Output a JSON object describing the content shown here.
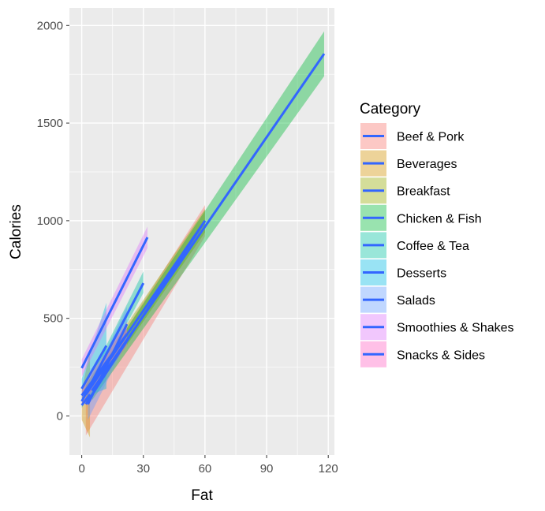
{
  "chart_data": {
    "type": "line",
    "subtype": "smoothed linear fit with confidence ribbons",
    "title": "",
    "xlabel": "Fat",
    "ylabel": "Calories",
    "xlim": [
      -6,
      123
    ],
    "ylim": [
      -200,
      2090
    ],
    "x_ticks": [
      0,
      30,
      60,
      90,
      120
    ],
    "y_ticks": [
      0,
      500,
      1000,
      1500,
      2000
    ],
    "grid": true,
    "legend": {
      "title": "Category",
      "position": "right"
    },
    "line_color": "#3366FF",
    "panel_background": "#EBEBEB",
    "series": [
      {
        "name": "Beef & Pork",
        "color": "#F8766D",
        "x": [
          2,
          60
        ],
        "y": [
          60,
          1000
        ],
        "ci": [
          [
            -100,
            120
          ],
          [
            920,
            1080
          ]
        ]
      },
      {
        "name": "Beverages",
        "color": "#D39200",
        "x": [
          0,
          4
        ],
        "y": [
          55,
          110
        ],
        "ci": [
          [
            -20,
            130
          ],
          [
            -110,
            330
          ]
        ]
      },
      {
        "name": "Breakfast",
        "color": "#93AA00",
        "x": [
          2,
          60
        ],
        "y": [
          110,
          1000
        ],
        "ci": [
          [
            60,
            160
          ],
          [
            940,
            1060
          ]
        ]
      },
      {
        "name": "Chicken & Fish",
        "color": "#00BA38",
        "x": [
          5,
          118
        ],
        "y": [
          130,
          1855
        ],
        "ci": [
          [
            80,
            180
          ],
          [
            1740,
            1970
          ]
        ]
      },
      {
        "name": "Coffee & Tea",
        "color": "#00C19F",
        "x": [
          0,
          30
        ],
        "y": [
          75,
          680
        ],
        "ci": [
          [
            40,
            110
          ],
          [
            630,
            740
          ]
        ]
      },
      {
        "name": "Desserts",
        "color": "#00B9E3",
        "x": [
          0,
          12
        ],
        "y": [
          140,
          360
        ],
        "ci": [
          [
            90,
            190
          ],
          [
            140,
            580
          ]
        ]
      },
      {
        "name": "Salads",
        "color": "#619CFF",
        "x": [
          3,
          22
        ],
        "y": [
          60,
          470
        ],
        "ci": [
          [
            -20,
            140
          ],
          [
            380,
            560
          ]
        ]
      },
      {
        "name": "Smoothies & Shakes",
        "color": "#DB72FB",
        "x": [
          0,
          32
        ],
        "y": [
          245,
          915
        ],
        "ci": [
          [
            200,
            290
          ],
          [
            860,
            970
          ]
        ]
      },
      {
        "name": "Snacks & Sides",
        "color": "#FF61C3",
        "x": [
          0,
          22
        ],
        "y": [
          105,
          420
        ],
        "ci": [
          [
            60,
            150
          ],
          [
            360,
            480
          ]
        ]
      }
    ]
  }
}
